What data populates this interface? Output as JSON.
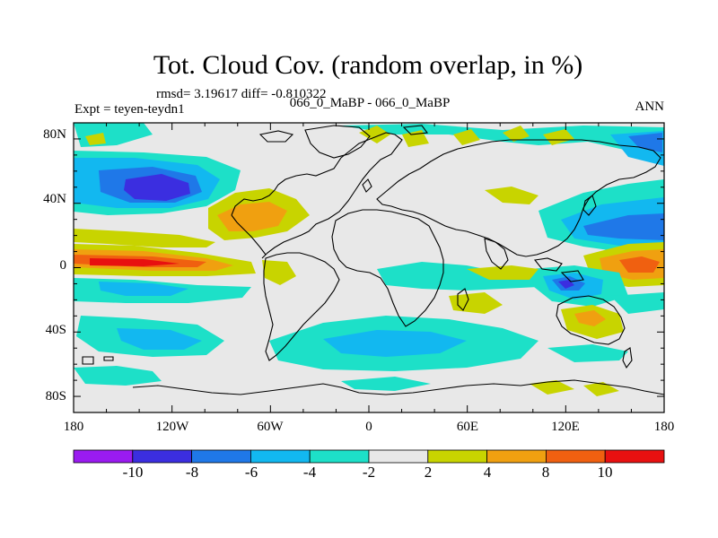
{
  "chart_data": {
    "type": "heatmap",
    "title": "Tot. Cloud Cov. (random overlap, in %)",
    "stats_line": "rmsd= 3.19617 diff= -0.810322",
    "left_label": "Expt = teyen-teydn1",
    "center_label": "066_0_MaBP - 066_0_MaBP",
    "right_label": "ANN",
    "x_ticks": [
      "180",
      "120W",
      "60W",
      "0",
      "60E",
      "120E",
      "180"
    ],
    "y_ticks": [
      "80N",
      "40N",
      "0",
      "40S",
      "80S"
    ],
    "lon_range": [
      -180,
      180
    ],
    "lat_range": [
      -90,
      90
    ],
    "colorbar": {
      "levels": [
        "-10",
        "-8",
        "-6",
        "-4",
        "-2",
        "2",
        "4",
        "8",
        "10"
      ],
      "colors": [
        "#9a1bf0",
        "#3b2ee0",
        "#1f78e8",
        "#12b8f0",
        "#1de0c8",
        "#e8e8e8",
        "#c8d400",
        "#f0a010",
        "#f06010",
        "#e81010"
      ]
    },
    "background_color": "#e8e8e8",
    "features": [
      {
        "name": "north-pacific-negative",
        "level": "-8",
        "lon": -145,
        "lat": 43
      },
      {
        "name": "tropical-pacific-positive",
        "level": "10",
        "lon": -150,
        "lat": 0
      },
      {
        "name": "western-pacific-positive",
        "level": "8",
        "lon": 160,
        "lat": -2
      },
      {
        "name": "southern-ocean-negative",
        "level": "-4",
        "lon": -20,
        "lat": -48
      },
      {
        "name": "north-america-positive",
        "level": "4",
        "lon": -95,
        "lat": 27
      }
    ]
  }
}
